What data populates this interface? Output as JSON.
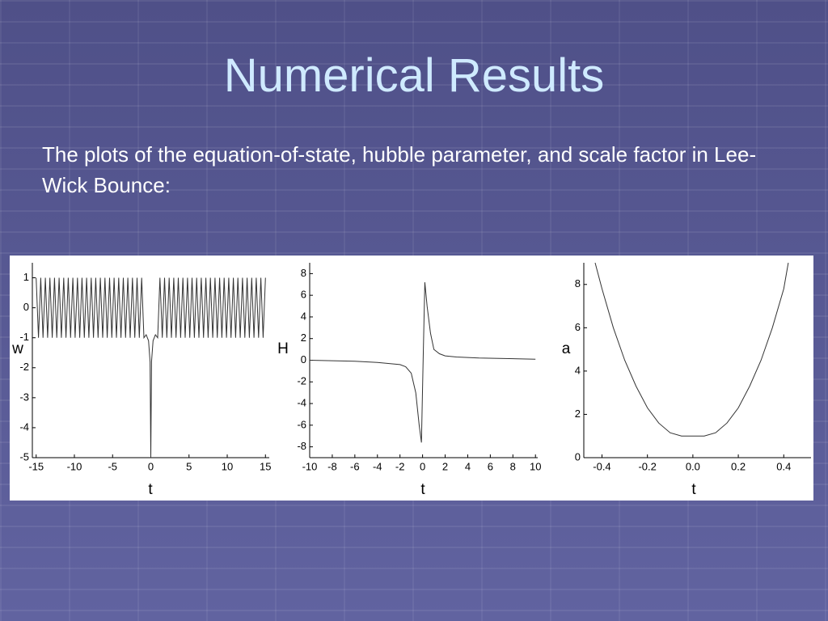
{
  "title": "Numerical Results",
  "text": "The plots of the equation-of-state, hubble parameter, and scale factor in Lee-Wick Bounce:",
  "chart_data": [
    {
      "type": "line",
      "xlabel": "t",
      "ylabel": "w",
      "color": "#333333",
      "xlim": [
        -15.5,
        15.5
      ],
      "ylim": [
        -5,
        1.5
      ],
      "xticks": [
        -15,
        -10,
        -5,
        0,
        5,
        10,
        15
      ],
      "yticks": [
        -5,
        -4,
        -3,
        -2,
        -1,
        0,
        1
      ],
      "x": [
        -15,
        -14.7,
        -14.4,
        -14.1,
        -13.8,
        -13.5,
        -13.2,
        -12.9,
        -12.6,
        -12.3,
        -12,
        -11.7,
        -11.4,
        -11.1,
        -10.8,
        -10.5,
        -10.2,
        -9.9,
        -9.6,
        -9.3,
        -9,
        -8.7,
        -8.4,
        -8.1,
        -7.8,
        -7.5,
        -7.2,
        -6.9,
        -6.6,
        -6.3,
        -6,
        -5.7,
        -5.4,
        -5.1,
        -4.8,
        -4.5,
        -4.2,
        -3.9,
        -3.6,
        -3.3,
        -3,
        -2.7,
        -2.4,
        -2.1,
        -1.8,
        -1.5,
        -1.2,
        -0.9,
        -0.6,
        -0.3,
        -0.1,
        0,
        0.1,
        0.3,
        0.6,
        0.9,
        1.2,
        1.5,
        1.8,
        2.1,
        2.4,
        2.7,
        3,
        3.3,
        3.6,
        3.9,
        4.2,
        4.5,
        4.8,
        5.1,
        5.4,
        5.7,
        6,
        6.3,
        6.6,
        6.9,
        7.2,
        7.5,
        7.8,
        8.1,
        8.4,
        8.7,
        9,
        9.3,
        9.6,
        9.9,
        10.2,
        10.5,
        10.8,
        11.1,
        11.4,
        11.7,
        12,
        12.3,
        12.6,
        12.9,
        13.2,
        13.5,
        13.8,
        14.1,
        14.4,
        14.7,
        15
      ],
      "values": [
        1,
        -1,
        1,
        -1,
        1,
        -1,
        1,
        -1,
        1,
        -1,
        1,
        -1,
        1,
        -1,
        1,
        -1,
        1,
        -1,
        1,
        -1,
        1,
        -1,
        1,
        -1,
        1,
        -1,
        1,
        -1,
        1,
        -1,
        1,
        -1,
        1,
        -1,
        1,
        -1,
        1,
        -1,
        1,
        -1,
        1,
        -1,
        1,
        -1,
        1,
        -1,
        1,
        -1,
        -0.9,
        -1.1,
        -1.8,
        -5,
        -1.8,
        -1.1,
        -0.9,
        -1,
        1,
        -1,
        1,
        -1,
        1,
        -1,
        1,
        -1,
        1,
        -1,
        1,
        -1,
        1,
        -1,
        1,
        -1,
        1,
        -1,
        1,
        -1,
        1,
        -1,
        1,
        -1,
        1,
        -1,
        1,
        -1,
        1,
        -1,
        1,
        -1,
        1,
        -1,
        1,
        -1,
        1,
        -1,
        1,
        -1,
        1,
        -1,
        1,
        -1,
        1,
        -1,
        1
      ]
    },
    {
      "type": "line",
      "xlabel": "t",
      "ylabel": "H",
      "color": "#333333",
      "xlim": [
        -10,
        10.2
      ],
      "ylim": [
        -9,
        9
      ],
      "xticks": [
        -10,
        -8,
        -6,
        -4,
        -2,
        0,
        2,
        4,
        6,
        8,
        10
      ],
      "yticks": [
        -8,
        -6,
        -4,
        -2,
        0,
        2,
        4,
        6,
        8
      ],
      "x": [
        -10,
        -6,
        -4,
        -2,
        -1.5,
        -1,
        -0.6,
        -0.3,
        -0.1,
        0.05,
        0.2,
        0.4,
        0.7,
        1,
        1.5,
        2,
        3,
        5,
        10
      ],
      "values": [
        0,
        -0.1,
        -0.2,
        -0.4,
        -0.6,
        -1.2,
        -3,
        -6,
        -7.6,
        0,
        7.2,
        5,
        2.5,
        1,
        0.6,
        0.4,
        0.3,
        0.2,
        0.1
      ]
    },
    {
      "type": "line",
      "xlabel": "t",
      "ylabel": "a",
      "color": "#333333",
      "xlim": [
        -0.48,
        0.52
      ],
      "ylim": [
        0,
        9
      ],
      "xticks": [
        -0.4,
        -0.2,
        {
          "value": 0,
          "label": "0.0"
        },
        0.2,
        0.4
      ],
      "yticks": [
        0,
        2,
        4,
        6,
        8
      ],
      "x": [
        -0.43,
        -0.4,
        -0.35,
        -0.3,
        -0.25,
        -0.2,
        -0.15,
        -0.1,
        -0.05,
        0,
        0.05,
        0.1,
        0.15,
        0.2,
        0.25,
        0.3,
        0.35,
        0.4,
        0.42
      ],
      "values": [
        9,
        7.8,
        6,
        4.5,
        3.3,
        2.3,
        1.6,
        1.15,
        1,
        1,
        1,
        1.15,
        1.6,
        2.3,
        3.3,
        4.5,
        6,
        7.8,
        9
      ]
    }
  ]
}
